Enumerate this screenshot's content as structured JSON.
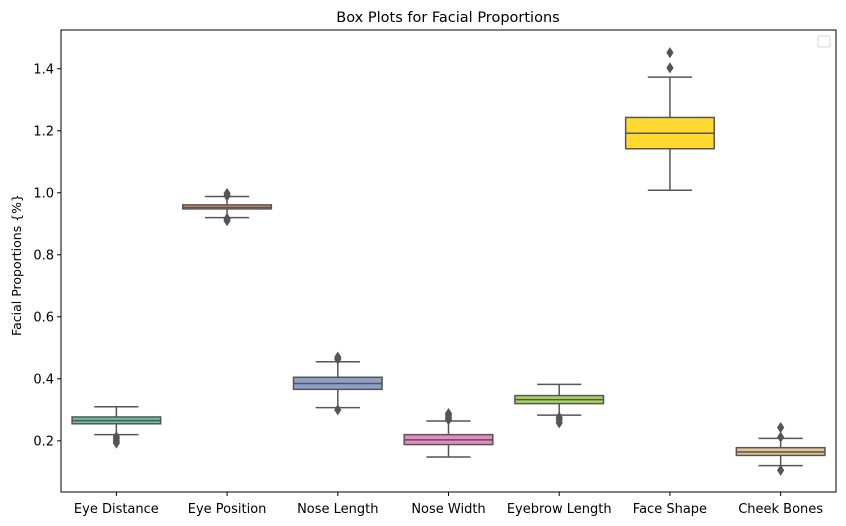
{
  "chart_data": {
    "type": "box",
    "title": "Box Plots for Facial Proportions",
    "xlabel": "",
    "ylabel": "Facial Proportions {%}",
    "ylim": [
      0.035,
      1.525
    ],
    "yticks": [
      "0.2",
      "0.4",
      "0.6",
      "0.8",
      "1.0",
      "1.2",
      "1.4"
    ],
    "grid": false,
    "legend": {
      "placement": "top-right",
      "entries": []
    },
    "categories": [
      "Eye Distance",
      "Eye Position",
      "Nose Length",
      "Nose Width",
      "Eyebrow Length",
      "Face Shape",
      "Cheek Bones"
    ],
    "colors": [
      "#66c2a5",
      "#fc8d62",
      "#8da0cb",
      "#e78ac3",
      "#a6d854",
      "#ffd92f",
      "#e5c494"
    ],
    "boxes": [
      {
        "whisker_low": 0.22,
        "q1": 0.255,
        "median": 0.265,
        "q3": 0.277,
        "whisker_high": 0.31,
        "outliers": [
          0.213,
          0.207,
          0.2,
          0.193
        ]
      },
      {
        "whisker_low": 0.92,
        "q1": 0.948,
        "median": 0.953,
        "q3": 0.961,
        "whisker_high": 0.988,
        "outliers": [
          0.917,
          0.91,
          0.99,
          0.998
        ]
      },
      {
        "whisker_low": 0.307,
        "q1": 0.366,
        "median": 0.385,
        "q3": 0.405,
        "whisker_high": 0.455,
        "outliers": [
          0.3,
          0.463,
          0.47
        ]
      },
      {
        "whisker_low": 0.148,
        "q1": 0.188,
        "median": 0.203,
        "q3": 0.22,
        "whisker_high": 0.264,
        "outliers": [
          0.268,
          0.275,
          0.282,
          0.288
        ]
      },
      {
        "whisker_low": 0.283,
        "q1": 0.32,
        "median": 0.333,
        "q3": 0.346,
        "whisker_high": 0.382,
        "outliers": [
          0.276,
          0.268,
          0.258
        ]
      },
      {
        "whisker_low": 1.008,
        "q1": 1.142,
        "median": 1.192,
        "q3": 1.243,
        "whisker_high": 1.373,
        "outliers": [
          1.403,
          1.452
        ]
      },
      {
        "whisker_low": 0.12,
        "q1": 0.153,
        "median": 0.164,
        "q3": 0.178,
        "whisker_high": 0.208,
        "outliers": [
          0.105,
          0.212,
          0.243
        ]
      }
    ]
  }
}
